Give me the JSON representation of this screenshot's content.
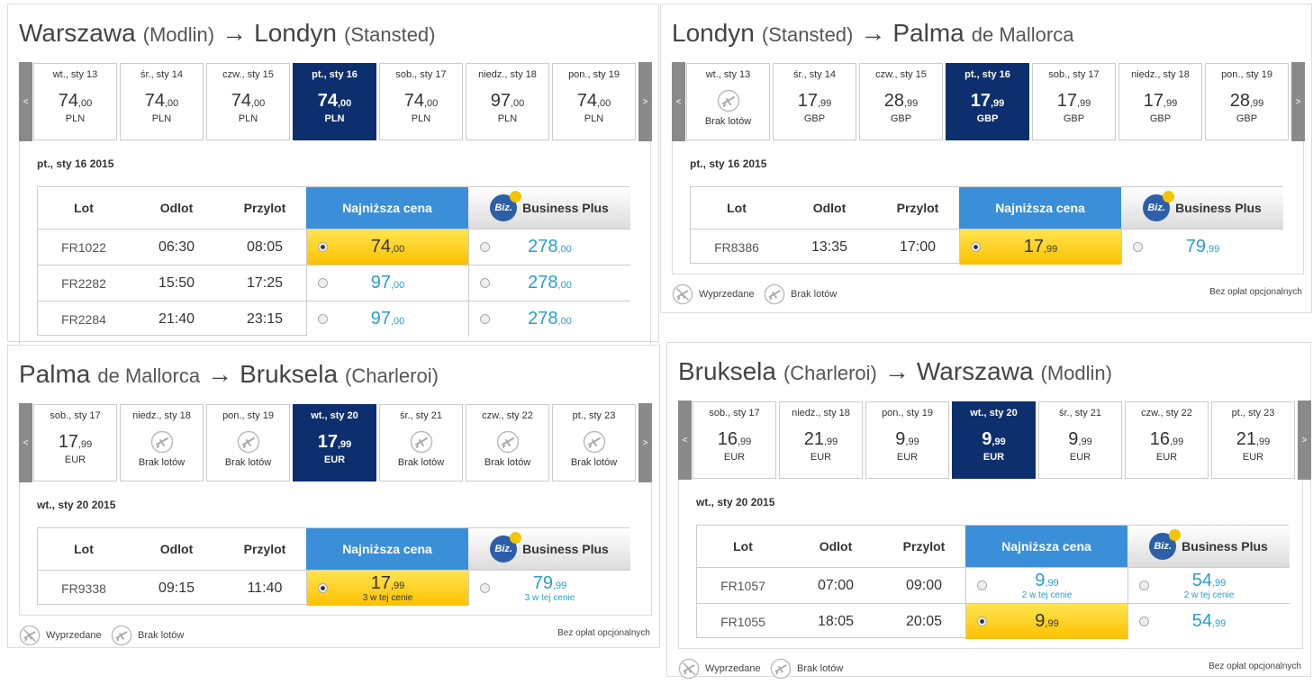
{
  "labels": {
    "prev": "<",
    "next": ">",
    "arrow": "→",
    "lot": "Lot",
    "odlot": "Odlot",
    "przylot": "Przylot",
    "cheapest": "Najniższa cena",
    "business": "Business Plus",
    "biz": "Biz.",
    "sold_out": "Wyprzedane",
    "no_flights": "Brak lotów",
    "no_fees": "Bez opłat opcjonalnych"
  },
  "panels": [
    {
      "origin": "Warszawa",
      "origin_detail": "(Modlin)",
      "destination": "Londyn",
      "destination_detail": "(Stansted)",
      "currency": "PLN",
      "selected_day": 3,
      "selected_date": "pt., sty 16 2015",
      "selected_row": 0,
      "legend": false,
      "days": [
        {
          "label": "wt., sty 13",
          "price": "74",
          "decimals": ",00"
        },
        {
          "label": "śr., sty 14",
          "price": "74",
          "decimals": ",00"
        },
        {
          "label": "czw., sty 15",
          "price": "74",
          "decimals": ",00"
        },
        {
          "label": "pt., sty 16",
          "price": "74",
          "decimals": ",00"
        },
        {
          "label": "sob., sty 17",
          "price": "74",
          "decimals": ",00"
        },
        {
          "label": "niedz., sty 18",
          "price": "97",
          "decimals": ",00"
        },
        {
          "label": "pon., sty 19",
          "price": "74",
          "decimals": ",00"
        }
      ],
      "rows": [
        {
          "flight": "FR1022",
          "departure": "06:30",
          "arrival": "08:05",
          "cheapest": {
            "price": "74",
            "decimals": ",00"
          },
          "business": {
            "price": "278",
            "decimals": ",00"
          }
        },
        {
          "flight": "FR2282",
          "departure": "15:50",
          "arrival": "17:25",
          "cheapest": {
            "price": "97",
            "decimals": ",00"
          },
          "business": {
            "price": "278",
            "decimals": ",00"
          }
        },
        {
          "flight": "FR2284",
          "departure": "21:40",
          "arrival": "23:15",
          "cheapest": {
            "price": "97",
            "decimals": ",00"
          },
          "business": {
            "price": "278",
            "decimals": ",00"
          }
        }
      ]
    },
    {
      "origin": "Londyn",
      "origin_detail": "(Stansted)",
      "destination": "Palma",
      "destination_detail": "de Mallorca",
      "currency": "GBP",
      "selected_day": 3,
      "selected_date": "pt., sty 16 2015",
      "selected_row": 0,
      "legend": true,
      "days": [
        {
          "label": "wt., sty 13",
          "price": null
        },
        {
          "label": "śr., sty 14",
          "price": "17",
          "decimals": ",99"
        },
        {
          "label": "czw., sty 15",
          "price": "28",
          "decimals": ",99"
        },
        {
          "label": "pt., sty 16",
          "price": "17",
          "decimals": ",99"
        },
        {
          "label": "sob., sty 17",
          "price": "17",
          "decimals": ",99"
        },
        {
          "label": "niedz., sty 18",
          "price": "17",
          "decimals": ",99"
        },
        {
          "label": "pon., sty 19",
          "price": "28",
          "decimals": ",99"
        }
      ],
      "rows": [
        {
          "flight": "FR8386",
          "departure": "13:35",
          "arrival": "17:00",
          "cheapest": {
            "price": "17",
            "decimals": ",99"
          },
          "business": {
            "price": "79",
            "decimals": ",99"
          }
        }
      ]
    },
    {
      "origin": "Palma",
      "origin_detail": "de Mallorca",
      "destination": "Bruksela",
      "destination_detail": "(Charleroi)",
      "currency": "EUR",
      "selected_day": 3,
      "selected_date": "wt., sty 20 2015",
      "selected_row": 0,
      "legend": true,
      "days": [
        {
          "label": "sob., sty 17",
          "price": "17",
          "decimals": ",99"
        },
        {
          "label": "niedz., sty 18",
          "price": null
        },
        {
          "label": "pon., sty 19",
          "price": null
        },
        {
          "label": "wt., sty 20",
          "price": "17",
          "decimals": ",99"
        },
        {
          "label": "śr., sty 21",
          "price": null
        },
        {
          "label": "czw., sty 22",
          "price": null
        },
        {
          "label": "pt., sty 23",
          "price": null
        }
      ],
      "rows": [
        {
          "flight": "FR9338",
          "departure": "09:15",
          "arrival": "11:40",
          "cheapest": {
            "price": "17",
            "decimals": ",99",
            "note": "3 w tej cenie"
          },
          "business": {
            "price": "79",
            "decimals": ",99",
            "note": "3 w tej cenie"
          }
        }
      ]
    },
    {
      "origin": "Bruksela",
      "origin_detail": "(Charleroi)",
      "destination": "Warszawa",
      "destination_detail": "(Modlin)",
      "currency": "EUR",
      "selected_day": 3,
      "selected_date": "wt., sty 20 2015",
      "selected_row": 1,
      "legend": true,
      "days": [
        {
          "label": "sob., sty 17",
          "price": "16",
          "decimals": ",99"
        },
        {
          "label": "niedz., sty 18",
          "price": "21",
          "decimals": ",99"
        },
        {
          "label": "pon., sty 19",
          "price": "9",
          "decimals": ",99"
        },
        {
          "label": "wt., sty 20",
          "price": "9",
          "decimals": ",99"
        },
        {
          "label": "śr., sty 21",
          "price": "9",
          "decimals": ",99"
        },
        {
          "label": "czw., sty 22",
          "price": "16",
          "decimals": ",99"
        },
        {
          "label": "pt., sty 23",
          "price": "21",
          "decimals": ",99"
        }
      ],
      "rows": [
        {
          "flight": "FR1057",
          "departure": "07:00",
          "arrival": "09:00",
          "cheapest": {
            "price": "9",
            "decimals": ",99",
            "note": "2 w tej cenie"
          },
          "business": {
            "price": "54",
            "decimals": ",99",
            "note": "2 w tej cenie"
          }
        },
        {
          "flight": "FR1055",
          "departure": "18:05",
          "arrival": "20:05",
          "cheapest": {
            "price": "9",
            "decimals": ",99"
          },
          "business": {
            "price": "54",
            "decimals": ",99"
          }
        }
      ]
    }
  ]
}
